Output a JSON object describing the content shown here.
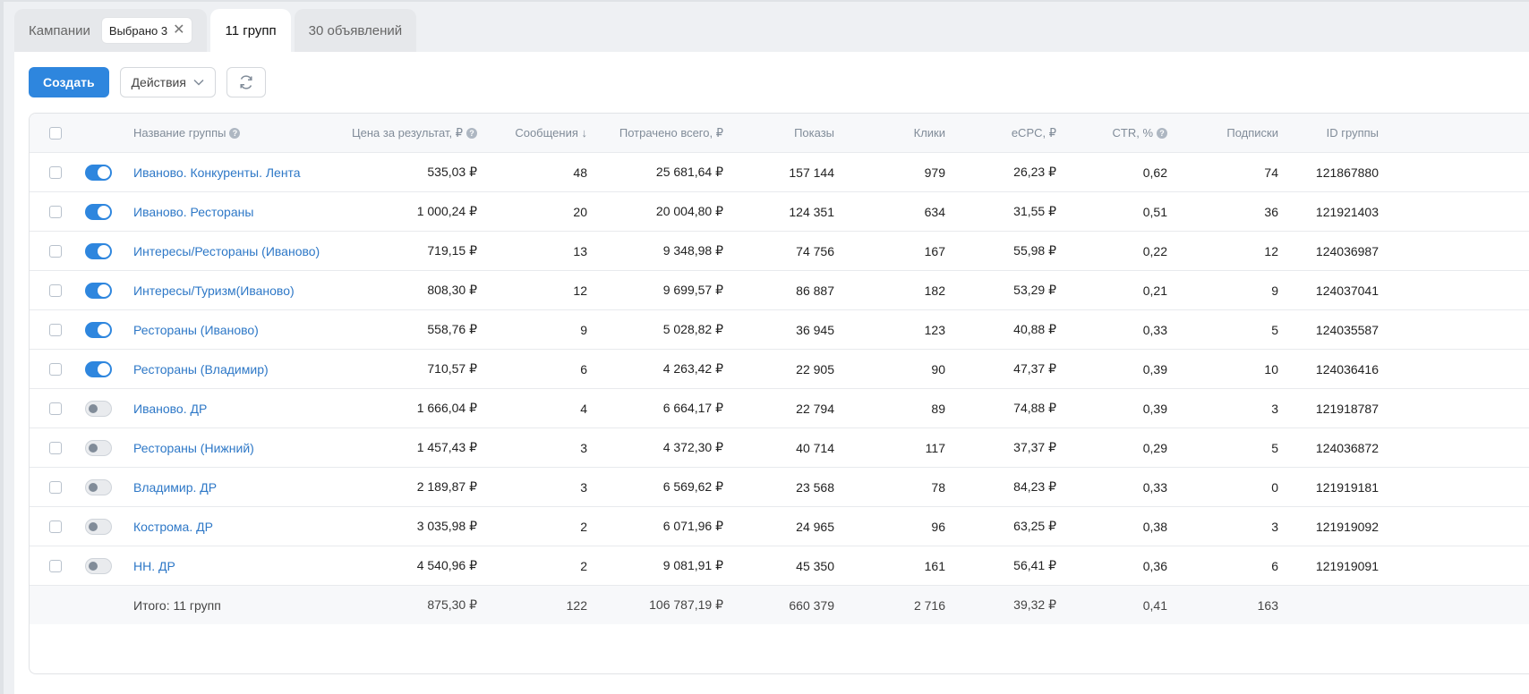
{
  "tabs": {
    "campaigns_label": "Кампании",
    "campaigns_chip": "Выбрано 3",
    "groups_label": "11 групп",
    "ads_label": "30 объявлений"
  },
  "toolbar": {
    "create_label": "Создать",
    "actions_label": "Действия"
  },
  "columns": {
    "name": "Название группы",
    "price": "Цена за результат, ₽",
    "messages": "Сообщения ↓",
    "spent": "Потрачено всего, ₽",
    "impressions": "Показы",
    "clicks": "Клики",
    "ecpc": "eCPC, ₽",
    "ctr": "CTR, %",
    "subs": "Подписки",
    "id": "ID группы"
  },
  "rows": [
    {
      "on": true,
      "name": "Иваново. Конкуренты. Лента",
      "price": "535,03 ₽",
      "messages": "48",
      "spent": "25 681,64 ₽",
      "impressions": "157 144",
      "clicks": "979",
      "ecpc": "26,23 ₽",
      "ctr": "0,62",
      "subs": "74",
      "id": "121867880"
    },
    {
      "on": true,
      "name": "Иваново. Рестораны",
      "price": "1 000,24 ₽",
      "messages": "20",
      "spent": "20 004,80 ₽",
      "impressions": "124 351",
      "clicks": "634",
      "ecpc": "31,55 ₽",
      "ctr": "0,51",
      "subs": "36",
      "id": "121921403"
    },
    {
      "on": true,
      "name": "Интересы/Рестораны (Иваново)",
      "price": "719,15 ₽",
      "messages": "13",
      "spent": "9 348,98 ₽",
      "impressions": "74 756",
      "clicks": "167",
      "ecpc": "55,98 ₽",
      "ctr": "0,22",
      "subs": "12",
      "id": "124036987"
    },
    {
      "on": true,
      "name": "Интересы/Туризм(Иваново)",
      "price": "808,30 ₽",
      "messages": "12",
      "spent": "9 699,57 ₽",
      "impressions": "86 887",
      "clicks": "182",
      "ecpc": "53,29 ₽",
      "ctr": "0,21",
      "subs": "9",
      "id": "124037041"
    },
    {
      "on": true,
      "name": "Рестораны (Иваново)",
      "price": "558,76 ₽",
      "messages": "9",
      "spent": "5 028,82 ₽",
      "impressions": "36 945",
      "clicks": "123",
      "ecpc": "40,88 ₽",
      "ctr": "0,33",
      "subs": "5",
      "id": "124035587"
    },
    {
      "on": true,
      "name": "Рестораны (Владимир)",
      "price": "710,57 ₽",
      "messages": "6",
      "spent": "4 263,42 ₽",
      "impressions": "22 905",
      "clicks": "90",
      "ecpc": "47,37 ₽",
      "ctr": "0,39",
      "subs": "10",
      "id": "124036416"
    },
    {
      "on": false,
      "name": "Иваново. ДР",
      "price": "1 666,04 ₽",
      "messages": "4",
      "spent": "6 664,17 ₽",
      "impressions": "22 794",
      "clicks": "89",
      "ecpc": "74,88 ₽",
      "ctr": "0,39",
      "subs": "3",
      "id": "121918787"
    },
    {
      "on": false,
      "name": "Рестораны (Нижний)",
      "price": "1 457,43 ₽",
      "messages": "3",
      "spent": "4 372,30 ₽",
      "impressions": "40 714",
      "clicks": "117",
      "ecpc": "37,37 ₽",
      "ctr": "0,29",
      "subs": "5",
      "id": "124036872"
    },
    {
      "on": false,
      "name": "Владимир. ДР",
      "price": "2 189,87 ₽",
      "messages": "3",
      "spent": "6 569,62 ₽",
      "impressions": "23 568",
      "clicks": "78",
      "ecpc": "84,23 ₽",
      "ctr": "0,33",
      "subs": "0",
      "id": "121919181"
    },
    {
      "on": false,
      "name": "Кострома. ДР",
      "price": "3 035,98 ₽",
      "messages": "2",
      "spent": "6 071,96 ₽",
      "impressions": "24 965",
      "clicks": "96",
      "ecpc": "63,25 ₽",
      "ctr": "0,38",
      "subs": "3",
      "id": "121919092"
    },
    {
      "on": false,
      "name": "НН. ДР",
      "price": "4 540,96 ₽",
      "messages": "2",
      "spent": "9 081,91 ₽",
      "impressions": "45 350",
      "clicks": "161",
      "ecpc": "56,41 ₽",
      "ctr": "0,36",
      "subs": "6",
      "id": "121919091"
    }
  ],
  "total": {
    "label": "Итого: 11 групп",
    "price": "875,30 ₽",
    "messages": "122",
    "spent": "106 787,19 ₽",
    "impressions": "660 379",
    "clicks": "2 716",
    "ecpc": "39,32 ₽",
    "ctr": "0,41",
    "subs": "163"
  },
  "colors": {
    "accent": "#2e86de",
    "link": "#2e78c7"
  }
}
